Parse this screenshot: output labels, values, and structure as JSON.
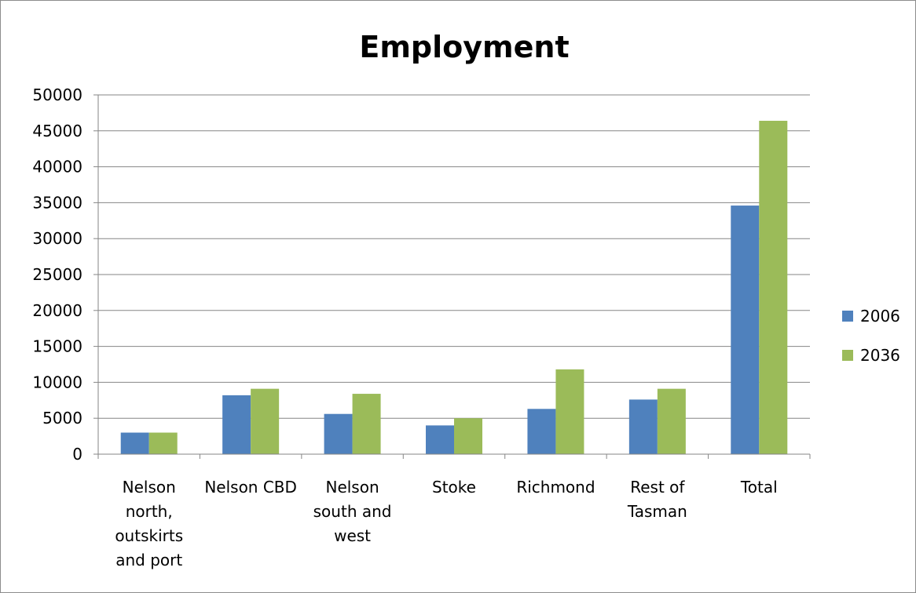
{
  "chart_data": {
    "type": "bar",
    "title": "Employment",
    "categories": [
      [
        "Nelson",
        "north,",
        "outskirts",
        "and port"
      ],
      [
        "Nelson CBD"
      ],
      [
        "Nelson",
        "south and",
        "west"
      ],
      [
        "Stoke"
      ],
      [
        "Richmond"
      ],
      [
        "Rest of",
        "Tasman"
      ],
      [
        "Total"
      ]
    ],
    "series": [
      {
        "name": "2006",
        "color": "#4f81bd",
        "values": [
          3000,
          8200,
          5600,
          4000,
          6300,
          7600,
          34600
        ]
      },
      {
        "name": "2036",
        "color": "#9bbb59",
        "values": [
          3000,
          9100,
          8400,
          5000,
          11800,
          9100,
          46400
        ]
      }
    ],
    "ylim": [
      0,
      50000
    ],
    "yticks": [
      0,
      5000,
      10000,
      15000,
      20000,
      25000,
      30000,
      35000,
      40000,
      45000,
      50000
    ],
    "grid": true,
    "legend": "right"
  }
}
